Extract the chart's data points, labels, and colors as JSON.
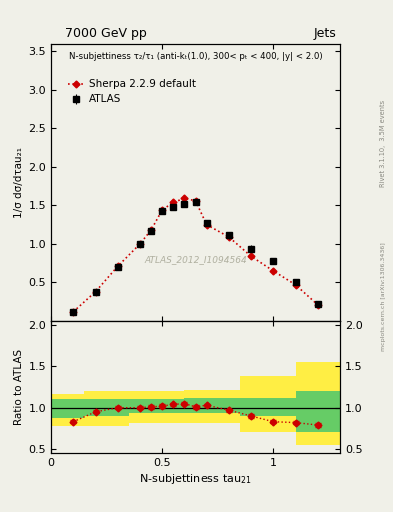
{
  "title_left": "7000 GeV pp",
  "title_right": "Jets",
  "annotation": "N-subjettiness τ₂/τ₁ (anti-kₜ(1.0), 300< pₜ < 400, |y| < 2.0)",
  "watermark": "ATLAS_2012_I1094564",
  "ylabel_main": "1/σ dσ/dτau₂₁",
  "ylabel_ratio": "Ratio to ATLAS",
  "xlabel": "N-subjettiness tau",
  "xlabel_sub": "21",
  "right_label": "Rivet 3.1.10,  3.5M events",
  "right_label2": "mcplots.cern.ch [arXiv:1306.3436]",
  "legend_atlas": "ATLAS",
  "legend_sherpa": "Sherpa 2.2.9 default",
  "atlas_x": [
    0.1,
    0.2,
    0.3,
    0.4,
    0.45,
    0.5,
    0.55,
    0.6,
    0.65,
    0.7,
    0.8,
    0.9,
    1.0,
    1.1,
    1.2
  ],
  "atlas_y": [
    0.12,
    0.37,
    0.7,
    1.0,
    1.17,
    1.43,
    1.48,
    1.52,
    1.54,
    1.27,
    1.11,
    0.94,
    0.78,
    0.5,
    0.22
  ],
  "atlas_yerr": [
    0.01,
    0.02,
    0.03,
    0.03,
    0.04,
    0.04,
    0.04,
    0.04,
    0.04,
    0.04,
    0.04,
    0.04,
    0.04,
    0.03,
    0.02
  ],
  "sherpa_x": [
    0.1,
    0.2,
    0.3,
    0.4,
    0.45,
    0.5,
    0.55,
    0.6,
    0.65,
    0.7,
    0.8,
    0.9,
    1.0,
    1.1,
    1.2
  ],
  "sherpa_y": [
    0.12,
    0.38,
    0.71,
    1.0,
    1.18,
    1.44,
    1.54,
    1.59,
    1.56,
    1.25,
    1.09,
    0.84,
    0.65,
    0.47,
    0.21
  ],
  "ratio_x": [
    0.1,
    0.2,
    0.3,
    0.4,
    0.45,
    0.5,
    0.55,
    0.6,
    0.65,
    0.7,
    0.8,
    0.9,
    1.0,
    1.1,
    1.2
  ],
  "ratio_y": [
    0.83,
    0.95,
    1.0,
    1.0,
    1.01,
    1.02,
    1.04,
    1.05,
    1.01,
    1.03,
    0.97,
    0.9,
    0.83,
    0.82,
    0.79
  ],
  "ratio_yerr": [
    0.02,
    0.02,
    0.02,
    0.02,
    0.02,
    0.02,
    0.02,
    0.02,
    0.02,
    0.02,
    0.02,
    0.02,
    0.02,
    0.02,
    0.02
  ],
  "band_x_edges": [
    0.0,
    0.15,
    0.35,
    0.6,
    0.85,
    1.1,
    1.3
  ],
  "green_low": [
    0.87,
    0.9,
    0.93,
    0.93,
    0.9,
    0.7,
    0.62
  ],
  "green_high": [
    1.1,
    1.1,
    1.1,
    1.12,
    1.12,
    1.2,
    1.35
  ],
  "yellow_low": [
    0.78,
    0.78,
    0.82,
    0.82,
    0.7,
    0.55,
    0.48
  ],
  "yellow_high": [
    1.17,
    1.2,
    1.2,
    1.22,
    1.38,
    1.55,
    1.9
  ],
  "main_ylim": [
    0,
    3.6
  ],
  "main_yticks": [
    0.5,
    1.0,
    1.5,
    2.0,
    2.5,
    3.0,
    3.5
  ],
  "ratio_ylim": [
    0.45,
    2.05
  ],
  "ratio_yticks": [
    0.5,
    1.0,
    1.5,
    2.0
  ],
  "xlim": [
    0,
    1.3
  ],
  "xticks": [
    0,
    0.5,
    1.0
  ],
  "color_atlas": "#000000",
  "color_sherpa": "#cc0000",
  "color_green": "#66cc66",
  "color_yellow": "#ffee44",
  "bg_color": "#f0f0e8"
}
